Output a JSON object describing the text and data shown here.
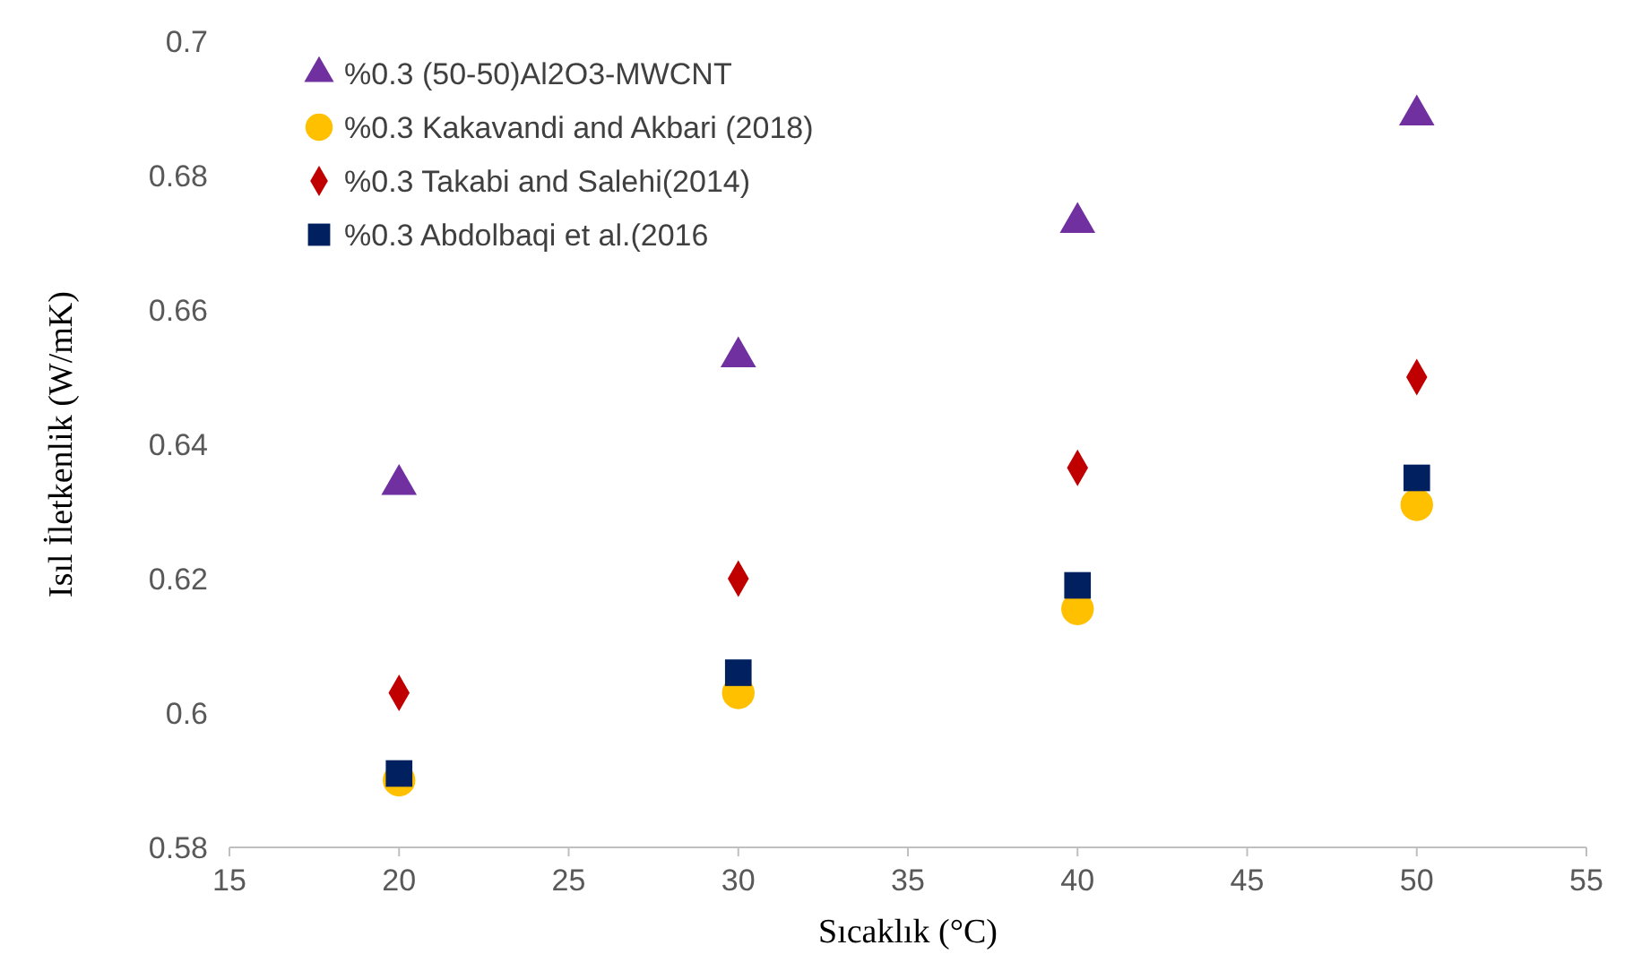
{
  "chart_data": {
    "type": "scatter",
    "xlabel": "Sıcaklık (°C)",
    "ylabel": "Isıl İletkenlik (W/mK)",
    "x": [
      20,
      30,
      40,
      50
    ],
    "xlim": [
      15,
      55
    ],
    "xticks": [
      15,
      20,
      25,
      30,
      35,
      40,
      45,
      50,
      55
    ],
    "ylim": [
      0.58,
      0.7
    ],
    "yticks": [
      0.58,
      0.6,
      0.62,
      0.64,
      0.66,
      0.68,
      0.7
    ],
    "grid": false,
    "legend": "top left",
    "series": [
      {
        "name": "%0.3 (50-50)Al2O3-MWCNT",
        "color": "#7030a0",
        "marker": "triangle",
        "values": [
          0.634,
          0.653,
          0.673,
          0.689
        ]
      },
      {
        "name": "%0.3 Kakavandi and Akbari (2018)",
        "color": "#ffc000",
        "marker": "circle",
        "values": [
          0.59,
          0.603,
          0.6155,
          0.631
        ]
      },
      {
        "name": "%0.3 Takabi and Salehi(2014)",
        "color": "#c00000",
        "marker": "diamond",
        "values": [
          0.603,
          0.62,
          0.6365,
          0.65
        ]
      },
      {
        "name": "%0.3 Abdolbaqi et al.(2016",
        "color": "#002060",
        "marker": "square",
        "values": [
          0.591,
          0.606,
          0.619,
          0.635
        ]
      }
    ]
  }
}
